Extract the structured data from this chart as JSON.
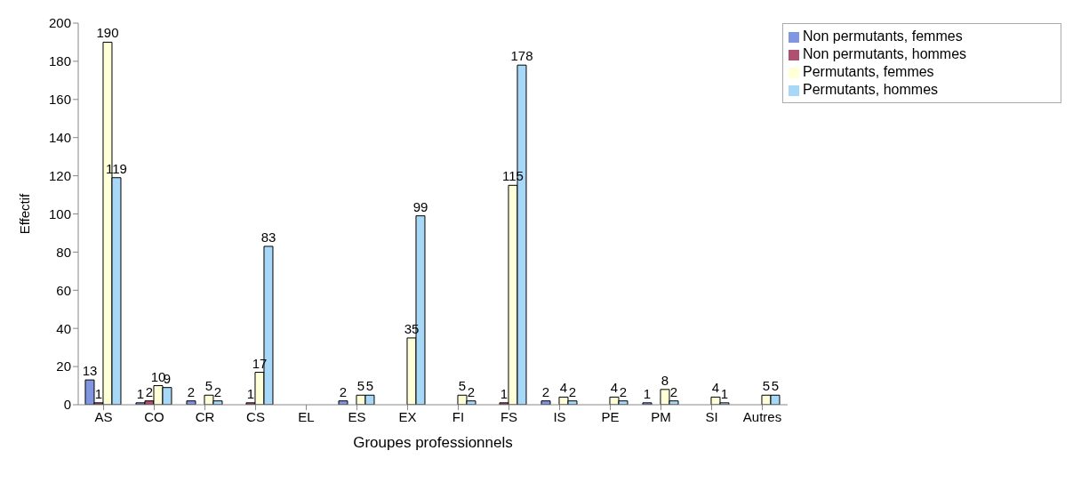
{
  "chart_data": {
    "type": "bar",
    "xlabel": "Groupes professionnels",
    "ylabel": "Effectif",
    "categories": [
      "AS",
      "CO",
      "CR",
      "CS",
      "EL",
      "ES",
      "EX",
      "FI",
      "FS",
      "IS",
      "PE",
      "PM",
      "SI",
      "Autres"
    ],
    "series": [
      {
        "name": "Non permutants, femmes",
        "color": "#8096e0",
        "values": [
          13,
          1,
          2,
          null,
          null,
          2,
          null,
          null,
          null,
          2,
          null,
          1,
          null,
          null
        ]
      },
      {
        "name": "Non permutants, hommes",
        "color": "#b05070",
        "values": [
          1,
          2,
          null,
          1,
          null,
          null,
          null,
          null,
          1,
          null,
          null,
          null,
          null,
          null
        ]
      },
      {
        "name": "Permutants, femmes",
        "color": "#ffffd8",
        "values": [
          190,
          10,
          5,
          17,
          null,
          5,
          35,
          5,
          115,
          4,
          4,
          8,
          4,
          5
        ]
      },
      {
        "name": "Permutants, hommes",
        "color": "#a8d8f8",
        "values": [
          119,
          9,
          2,
          83,
          null,
          5,
          99,
          2,
          178,
          2,
          2,
          2,
          1,
          5
        ]
      }
    ],
    "ylim": [
      0,
      200
    ],
    "yticks": [
      0,
      20,
      40,
      60,
      80,
      100,
      120,
      140,
      160,
      180,
      200
    ],
    "grid": false,
    "legend": "top right",
    "data_labels": true
  }
}
